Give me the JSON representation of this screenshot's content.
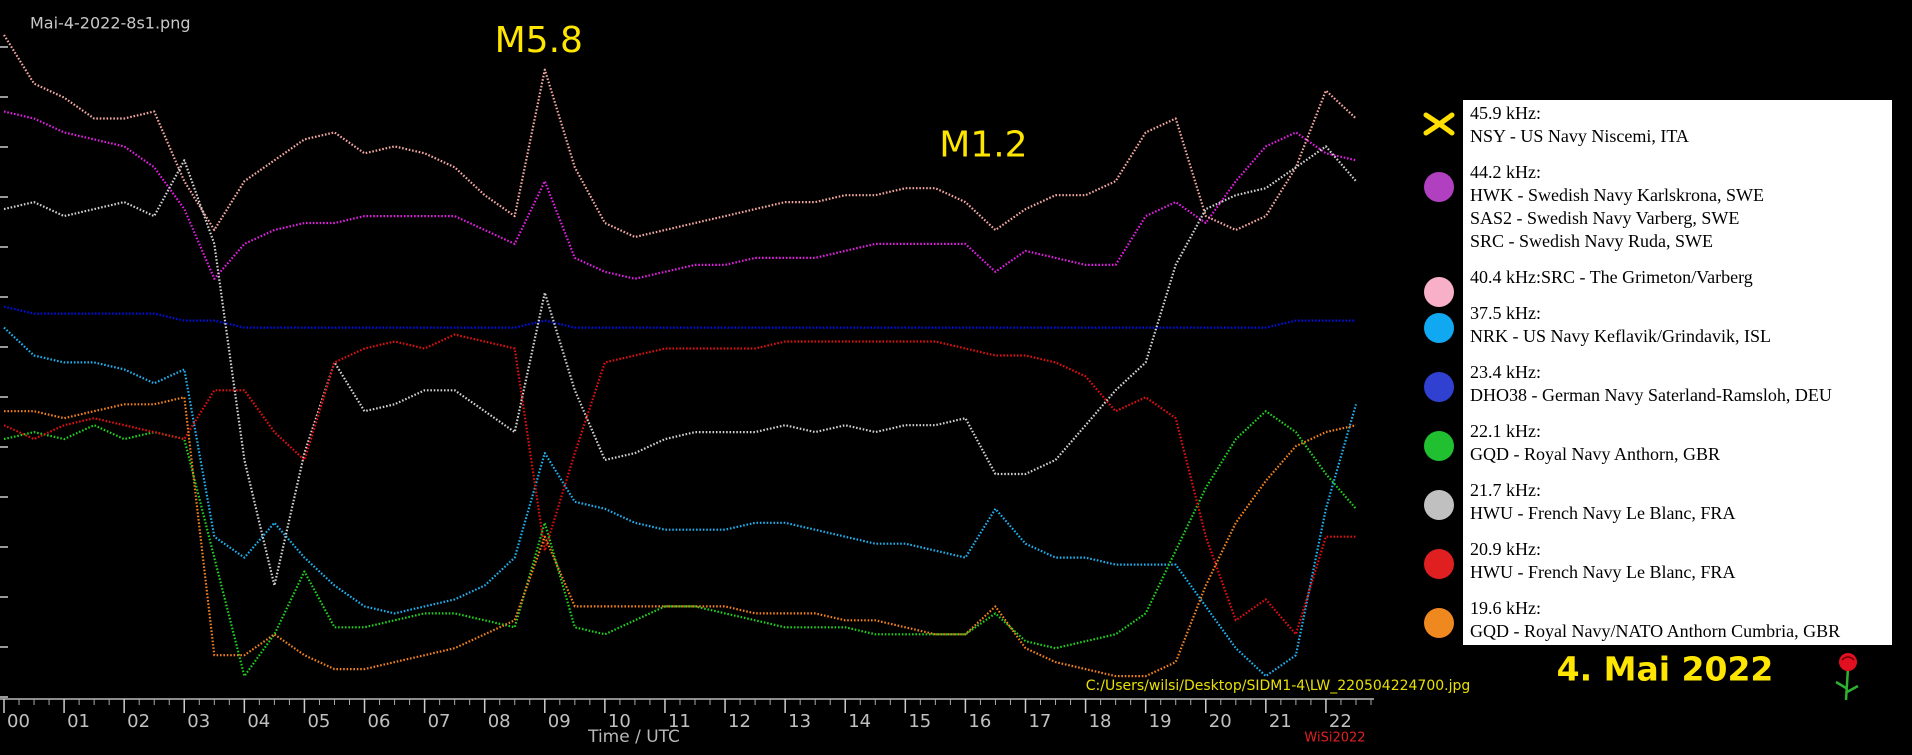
{
  "chart_data": {
    "type": "line",
    "title": "Mai-4-2022-8s1.png",
    "x_label": "Time / UTC",
    "date_label": "4. Mai 2022",
    "file_path": "C:/Users/wilsi/Desktop/SIDM1-4\\LW_220504224700.jpg",
    "signature": "WiSi2022",
    "annotations": [
      {
        "text": "M5.8",
        "x": 8.9,
        "y": 94
      },
      {
        "text": "M1.2",
        "x": 16.3,
        "y": 79
      }
    ],
    "xlim": [
      0,
      22.8
    ],
    "ylim": [
      0,
      100
    ],
    "xticks": [
      {
        "value": 0,
        "label": "00"
      },
      {
        "value": 1,
        "label": "01"
      },
      {
        "value": 2,
        "label": "02"
      },
      {
        "value": 3,
        "label": "03"
      },
      {
        "value": 4,
        "label": "04"
      },
      {
        "value": 5,
        "label": "05"
      },
      {
        "value": 6,
        "label": "06"
      },
      {
        "value": 7,
        "label": "07"
      },
      {
        "value": 8,
        "label": "08"
      },
      {
        "value": 9,
        "label": "09"
      },
      {
        "value": 10,
        "label": "10"
      },
      {
        "value": 11,
        "label": "11"
      },
      {
        "value": 12,
        "label": "12"
      },
      {
        "value": 13,
        "label": "13"
      },
      {
        "value": 14,
        "label": "14"
      },
      {
        "value": 15,
        "label": "15"
      },
      {
        "value": 16,
        "label": "16"
      },
      {
        "value": 17,
        "label": "17"
      },
      {
        "value": 18,
        "label": "18"
      },
      {
        "value": 19,
        "label": "19"
      },
      {
        "value": 20,
        "label": "20"
      },
      {
        "value": 21,
        "label": "21"
      },
      {
        "value": 22,
        "label": "22"
      }
    ],
    "x": [
      0,
      0.5,
      1,
      1.5,
      2,
      2.5,
      3,
      3.5,
      4,
      4.5,
      5,
      5.5,
      6,
      6.5,
      7,
      7.5,
      8,
      8.5,
      9,
      9.5,
      10,
      10.5,
      11,
      11.5,
      12,
      12.5,
      13,
      13.5,
      14,
      14.5,
      15,
      15.5,
      16,
      16.5,
      17,
      17.5,
      18,
      18.5,
      19,
      19.5,
      20,
      20.5,
      21,
      21.5,
      22,
      22.5
    ],
    "series": [
      {
        "name": "45.9 kHz:",
        "stations": [
          "NSY - US Navy Niscemi, ITA"
        ],
        "marker": "cross",
        "marker_color": "#ffe000",
        "color": "#ffe000",
        "values": [
          null,
          null,
          null,
          null,
          null,
          null,
          null,
          null,
          null,
          null,
          null,
          null,
          null,
          null,
          null,
          null,
          null,
          null,
          null,
          null,
          null,
          null,
          null,
          null,
          null,
          null,
          null,
          null,
          null,
          null,
          null,
          null,
          null,
          null,
          null,
          null,
          null,
          null,
          null,
          null,
          null,
          null,
          null,
          null,
          null,
          null
        ]
      },
      {
        "name": "44.2 kHz:",
        "stations": [
          "HWK - Swedish Navy Karlskrona, SWE",
          "SAS2 - Swedish Navy Varberg, SWE",
          "SRC - Swedish Navy Ruda, SWE"
        ],
        "marker": "circle",
        "marker_color": "#b040c0",
        "color": "#e020e0",
        "values": [
          84,
          83,
          81,
          80,
          79,
          76,
          70,
          60,
          65,
          67,
          68,
          68,
          69,
          69,
          69,
          69,
          67,
          65,
          74,
          63,
          61,
          60,
          61,
          62,
          62,
          63,
          63,
          63,
          64,
          65,
          65,
          65,
          65,
          61,
          64,
          63,
          62,
          62,
          69,
          71,
          68,
          74,
          79,
          81,
          78,
          77
        ]
      },
      {
        "name": "40.4 kHz:SRC - The Grimeton/Varberg",
        "stations": [],
        "marker": "circle",
        "marker_color": "#f8b0c8",
        "color": "#f4a8a0",
        "values": [
          95,
          88,
          86,
          83,
          83,
          84,
          74,
          67,
          74,
          77,
          80,
          81,
          78,
          79,
          78,
          76,
          72,
          69,
          90,
          76,
          68,
          66,
          67,
          68,
          69,
          70,
          71,
          71,
          72,
          72,
          73,
          73,
          71,
          67,
          70,
          72,
          72,
          74,
          81,
          83,
          69,
          67,
          69,
          76,
          87,
          83
        ]
      },
      {
        "name": "37.5 kHz:",
        "stations": [
          "NRK - US Navy Keflavik/Grindavik, ISL"
        ],
        "marker": "circle",
        "marker_color": "#10a8f0",
        "color": "#20b0f0",
        "values": [
          53,
          49,
          48,
          48,
          47,
          45,
          47,
          23,
          20,
          25,
          20,
          16,
          13,
          12,
          13,
          14,
          16,
          20,
          35,
          28,
          27,
          25,
          24,
          24,
          24,
          25,
          25,
          24,
          23,
          22,
          22,
          21,
          20,
          27,
          22,
          20,
          20,
          19,
          19,
          19,
          13,
          7,
          3,
          6,
          27,
          42
        ]
      },
      {
        "name": "23.4 kHz:",
        "stations": [
          "DHO38 - German Navy Saterland-Ramsloh, DEU"
        ],
        "marker": "circle",
        "marker_color": "#3040d0",
        "color": "#0010e0",
        "values": [
          56,
          55,
          55,
          55,
          55,
          55,
          54,
          54,
          53,
          53,
          53,
          53,
          53,
          53,
          53,
          53,
          53,
          53,
          54,
          53,
          53,
          53,
          53,
          53,
          53,
          53,
          53,
          53,
          53,
          53,
          53,
          53,
          53,
          53,
          53,
          53,
          53,
          53,
          53,
          53,
          53,
          53,
          53,
          54,
          54,
          54
        ]
      },
      {
        "name": "22.1 kHz:",
        "stations": [
          "GQD - Royal Navy Anthorn, GBR"
        ],
        "marker": "circle",
        "marker_color": "#20c030",
        "color": "#20d020",
        "values": [
          37,
          38,
          37,
          39,
          37,
          38,
          37,
          20,
          3,
          9,
          18,
          10,
          10,
          11,
          12,
          12,
          11,
          10,
          25,
          10,
          9,
          11,
          13,
          13,
          12,
          11,
          10,
          10,
          10,
          9,
          9,
          9,
          9,
          12,
          8,
          7,
          8,
          9,
          12,
          21,
          30,
          37,
          41,
          38,
          32,
          27
        ]
      },
      {
        "name": "21.7 kHz:",
        "stations": [
          "HWU - French Navy Le Blanc, FRA"
        ],
        "marker": "circle",
        "marker_color": "#c0c0c0",
        "color": "#d0d0d0",
        "values": [
          70,
          71,
          69,
          70,
          71,
          69,
          77,
          65,
          34,
          16,
          35,
          48,
          41,
          42,
          44,
          44,
          41,
          38,
          58,
          44,
          34,
          35,
          37,
          38,
          38,
          38,
          39,
          38,
          39,
          38,
          39,
          39,
          40,
          32,
          32,
          34,
          39,
          44,
          48,
          62,
          70,
          72,
          73,
          76,
          79,
          74
        ]
      },
      {
        "name": "20.9 kHz:",
        "stations": [
          "HWU - French Navy Le Blanc, FRA"
        ],
        "marker": "circle",
        "marker_color": "#e02020",
        "color": "#e01010",
        "values": [
          39,
          37,
          39,
          40,
          39,
          38,
          37,
          44,
          44,
          38,
          34,
          48,
          50,
          51,
          50,
          52,
          51,
          50,
          21,
          35,
          48,
          49,
          50,
          50,
          50,
          50,
          51,
          51,
          51,
          51,
          51,
          51,
          50,
          49,
          49,
          48,
          46,
          41,
          43,
          40,
          23,
          11,
          14,
          9,
          23,
          23
        ]
      },
      {
        "name": "19.6 kHz:",
        "stations": [
          "GQD - Royal Navy/NATO Anthorn Cumbria, GBR"
        ],
        "marker": "circle",
        "marker_color": "#f08820",
        "color": "#f08020",
        "values": [
          41,
          41,
          40,
          41,
          42,
          42,
          43,
          6,
          6,
          9,
          6,
          4,
          4,
          5,
          6,
          7,
          9,
          11,
          23,
          13,
          13,
          13,
          13,
          13,
          13,
          12,
          12,
          12,
          11,
          11,
          10,
          9,
          9,
          13,
          7,
          5,
          4,
          3,
          3,
          5,
          16,
          25,
          31,
          36,
          38,
          39
        ]
      }
    ]
  }
}
